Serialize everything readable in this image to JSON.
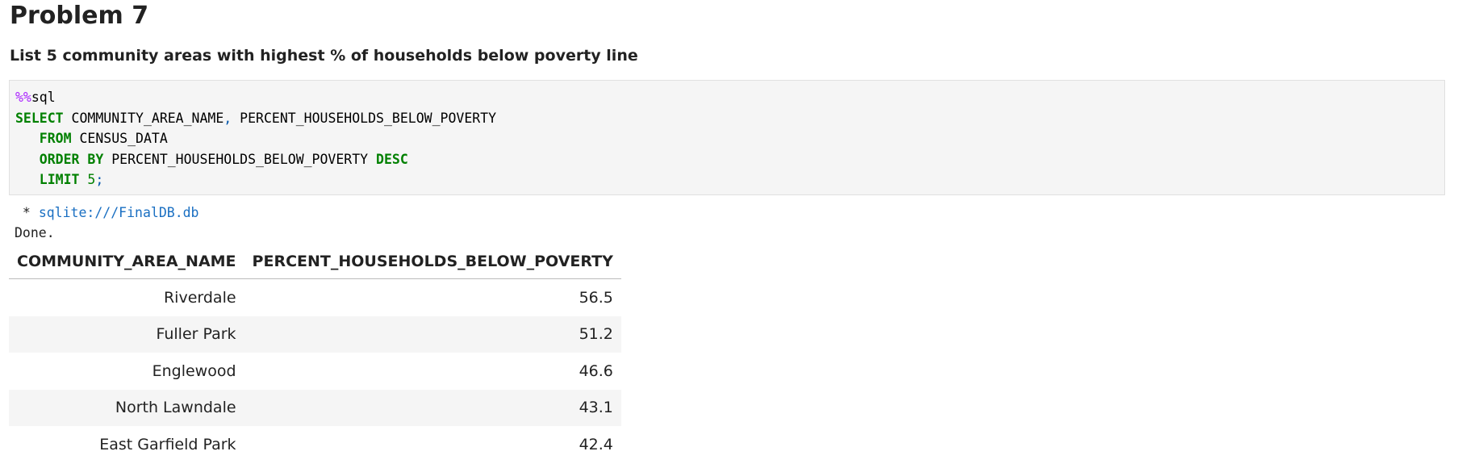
{
  "heading": "Problem 7",
  "instruction": "List 5 community areas with highest % of households below poverty line",
  "code": {
    "lines": [
      [
        {
          "text": "%%",
          "color": "#aa22ff",
          "bold": false
        },
        {
          "text": "sql",
          "color": "#000000",
          "bold": false
        }
      ],
      [
        {
          "text": "SELECT",
          "color": "#008000",
          "bold": true
        },
        {
          "text": " COMMUNITY_AREA_NAME",
          "color": "#000000",
          "bold": false
        },
        {
          "text": ",",
          "color": "#0055aa",
          "bold": false
        },
        {
          "text": " PERCENT_HOUSEHOLDS_BELOW_POVERTY",
          "color": "#000000",
          "bold": false
        }
      ],
      [
        {
          "text": "   FROM",
          "color": "#008000",
          "bold": true
        },
        {
          "text": " CENSUS_DATA",
          "color": "#000000",
          "bold": false
        }
      ],
      [
        {
          "text": "   ORDER BY",
          "color": "#008000",
          "bold": true
        },
        {
          "text": " PERCENT_HOUSEHOLDS_BELOW_POVERTY ",
          "color": "#000000",
          "bold": false
        },
        {
          "text": "DESC",
          "color": "#008000",
          "bold": true
        }
      ],
      [
        {
          "text": "   LIMIT",
          "color": "#008000",
          "bold": true
        },
        {
          "text": " 5",
          "color": "#008000",
          "bold": false
        },
        {
          "text": ";",
          "color": "#0055aa",
          "bold": false
        }
      ]
    ]
  },
  "output": {
    "connection_prefix": " * ",
    "connection": "sqlite:///FinalDB.db",
    "status": "Done."
  },
  "table": {
    "columns": [
      "COMMUNITY_AREA_NAME",
      "PERCENT_HOUSEHOLDS_BELOW_POVERTY"
    ],
    "rows": [
      [
        "Riverdale",
        56.5
      ],
      [
        "Fuller Park",
        51.2
      ],
      [
        "Englewood",
        46.6
      ],
      [
        "North Lawndale",
        43.1
      ],
      [
        "East Garfield Park",
        42.4
      ]
    ]
  }
}
